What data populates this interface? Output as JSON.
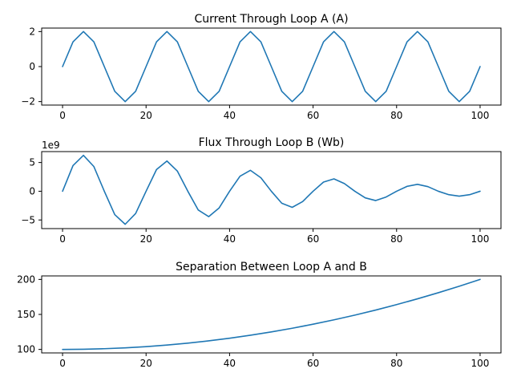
{
  "chart_data": [
    {
      "type": "line",
      "title": "Current Through Loop A (A)",
      "xlabel": "",
      "ylabel": "",
      "xlim": [
        -5,
        105
      ],
      "ylim": [
        -2.2,
        2.2
      ],
      "x_ticks": [
        0,
        20,
        40,
        60,
        80,
        100
      ],
      "x_tick_labels": [
        "0",
        "20",
        "40",
        "60",
        "80",
        "100"
      ],
      "y_ticks": [
        -2,
        0,
        2
      ],
      "y_tick_labels": [
        "−2",
        "0",
        "2"
      ],
      "offset_text": "",
      "grid": false,
      "color": "#1f77b4",
      "series": [
        {
          "x": [
            0,
            2.5,
            5,
            7.5,
            10,
            12.5,
            15,
            17.5,
            20,
            22.5,
            25,
            27.5,
            30,
            32.5,
            35,
            37.5,
            40,
            42.5,
            45,
            47.5,
            50,
            52.5,
            55,
            57.5,
            60,
            62.5,
            65,
            67.5,
            70,
            72.5,
            75,
            77.5,
            80,
            82.5,
            85,
            87.5,
            90,
            92.5,
            95,
            97.5,
            100
          ],
          "values": [
            0,
            1.41,
            2,
            1.41,
            0,
            -1.41,
            -2,
            -1.41,
            0,
            1.41,
            2,
            1.41,
            0,
            -1.41,
            -2,
            -1.41,
            0,
            1.41,
            2,
            1.41,
            0,
            -1.41,
            -2,
            -1.41,
            0,
            1.41,
            2,
            1.41,
            0,
            -1.41,
            -2,
            -1.41,
            0,
            1.41,
            2,
            1.41,
            0,
            -1.41,
            -2,
            -1.41,
            0
          ]
        }
      ]
    },
    {
      "type": "line",
      "title": "Flux Through Loop B (Wb)",
      "xlabel": "",
      "ylabel": "",
      "xlim": [
        -5,
        105
      ],
      "ylim": [
        -6500000000.0,
        6900000000.0
      ],
      "x_ticks": [
        0,
        20,
        40,
        60,
        80,
        100
      ],
      "x_tick_labels": [
        "0",
        "20",
        "40",
        "60",
        "80",
        "100"
      ],
      "y_ticks": [
        -5000000000.0,
        0,
        5000000000.0
      ],
      "y_tick_labels": [
        "−5",
        "0",
        "5"
      ],
      "offset_text": "1e9",
      "grid": false,
      "color": "#1f77b4",
      "series": [
        {
          "x": [
            0,
            2.5,
            5,
            7.5,
            10,
            12.5,
            15,
            17.5,
            20,
            22.5,
            25,
            27.5,
            30,
            32.5,
            35,
            37.5,
            40,
            42.5,
            45,
            47.5,
            50,
            52.5,
            55,
            57.5,
            60,
            62.5,
            65,
            67.5,
            70,
            72.5,
            75,
            77.5,
            80,
            82.5,
            85,
            87.5,
            90,
            92.5,
            95,
            97.5,
            100
          ],
          "values": [
            0,
            4470000000.0,
            6250000000.0,
            4300000000.0,
            0,
            -4070000000.0,
            -5750000000.0,
            -3870000000.0,
            0,
            3780000000.0,
            5260000000.0,
            3500000000.0,
            0,
            -3270000000.0,
            -4420000000.0,
            -2900000000.0,
            0,
            2620000000.0,
            3640000000.0,
            2350000000.0,
            0,
            -2090000000.0,
            -2800000000.0,
            -1800000000.0,
            0,
            1600000000.0,
            2150000000.0,
            1330000000.0,
            0,
            -1150000000.0,
            -1620000000.0,
            -1000000000.0,
            0,
            850000000.0,
            1200000000.0,
            800000000.0,
            0,
            -600000000.0,
            -850000000.0,
            -600000000.0,
            0
          ]
        }
      ]
    },
    {
      "type": "line",
      "title": "Separation Between Loop A and B",
      "xlabel": "",
      "ylabel": "",
      "xlim": [
        -5,
        105
      ],
      "ylim": [
        95,
        205
      ],
      "x_ticks": [
        0,
        20,
        40,
        60,
        80,
        100
      ],
      "x_tick_labels": [
        "0",
        "20",
        "40",
        "60",
        "80",
        "100"
      ],
      "y_ticks": [
        100,
        150,
        200
      ],
      "y_tick_labels": [
        "100",
        "150",
        "200"
      ],
      "offset_text": "",
      "grid": false,
      "color": "#1f77b4",
      "series": [
        {
          "x": [
            0,
            5,
            10,
            15,
            20,
            25,
            30,
            35,
            40,
            45,
            50,
            55,
            60,
            65,
            70,
            75,
            80,
            85,
            90,
            95,
            100
          ],
          "values": [
            100,
            100.25,
            101,
            102.25,
            104,
            106.25,
            109,
            112.25,
            116,
            120.25,
            125,
            130.25,
            136,
            142.25,
            149,
            156.25,
            164,
            172.25,
            181,
            190.25,
            200
          ]
        }
      ]
    }
  ]
}
